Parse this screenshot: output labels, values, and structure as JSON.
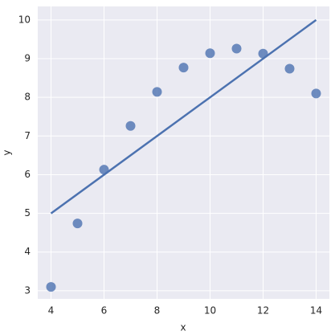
{
  "chart_data": {
    "type": "scatter",
    "x_label": "x",
    "y_label": "y",
    "series": [
      {
        "color": "#4c72b0",
        "x": [
          4,
          5,
          6,
          7,
          8,
          9,
          10,
          11,
          12,
          13,
          14
        ],
        "values": [
          3.1,
          4.74,
          6.13,
          7.26,
          8.14,
          8.77,
          9.14,
          9.26,
          9.13,
          8.74,
          8.1
        ]
      }
    ],
    "fit_line": {
      "color": "#4c72b0",
      "x": [
        4,
        14
      ],
      "values": [
        5,
        10
      ]
    },
    "xlim": [
      3.5,
      14.5
    ],
    "ylim": [
      2.79,
      10.35
    ],
    "xticks": [
      4,
      6,
      8,
      10,
      12,
      14
    ],
    "yticks": [
      3,
      4,
      5,
      6,
      7,
      8,
      9,
      10
    ],
    "grid": true
  }
}
